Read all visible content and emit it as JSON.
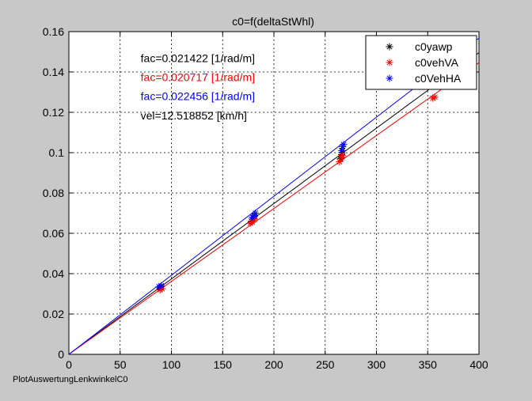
{
  "chart_data": {
    "type": "scatter",
    "title": "c0=f(deltaStWhl)",
    "xlabel": "",
    "ylabel": "",
    "xlim": [
      0,
      400
    ],
    "ylim": [
      0,
      0.16
    ],
    "xticks": [
      "0",
      "50",
      "100",
      "150",
      "200",
      "250",
      "300",
      "350",
      "400"
    ],
    "yticks": [
      "0",
      "0.02",
      "0.04",
      "0.06",
      "0.08",
      "0.1",
      "0.12",
      "0.14",
      "0.16"
    ],
    "grid": true,
    "legend_position": "top-right",
    "series": [
      {
        "name": "c0yawp",
        "color": "#000000",
        "marker": "asterisk",
        "points": [
          [
            89,
            0.033
          ],
          [
            90,
            0.0335
          ],
          [
            178,
            0.066
          ],
          [
            180,
            0.0675
          ],
          [
            181,
            0.0685
          ],
          [
            265,
            0.097
          ],
          [
            266,
            0.099
          ],
          [
            267,
            0.101
          ]
        ],
        "fit_slope": 0.000373878
      },
      {
        "name": "c0vehVA",
        "color": "#ff0000",
        "marker": "asterisk",
        "points": [
          [
            89,
            0.032
          ],
          [
            91,
            0.0325
          ],
          [
            177,
            0.065
          ],
          [
            179,
            0.0655
          ],
          [
            181,
            0.067
          ],
          [
            264,
            0.0955
          ],
          [
            266,
            0.0975
          ],
          [
            267,
            0.0985
          ],
          [
            355,
            0.127
          ],
          [
            357,
            0.1275
          ]
        ],
        "fit_slope": 0.000361582
      },
      {
        "name": "c0VehHA",
        "color": "#0000ff",
        "marker": "asterisk",
        "points": [
          [
            88,
            0.0335
          ],
          [
            90,
            0.034
          ],
          [
            179,
            0.068
          ],
          [
            181,
            0.069
          ],
          [
            182,
            0.07
          ],
          [
            266,
            0.101
          ],
          [
            267,
            0.103
          ],
          [
            268,
            0.104
          ]
        ],
        "fit_slope": 0.00039193
      }
    ],
    "annotations": [
      {
        "text": "fac=0.021422 [1/rad/m]",
        "color": "#000000",
        "x": 70,
        "y": 0.145
      },
      {
        "text": "fac=0.020717 [1/rad/m]",
        "color": "#ff0000",
        "x": 70,
        "y": 0.1355
      },
      {
        "text": "fac=0.022456 [1/rad/m]",
        "color": "#0000ff",
        "x": 70,
        "y": 0.126
      },
      {
        "text": "vel=12.518852 [km/h]",
        "color": "#000000",
        "x": 70,
        "y": 0.1165
      }
    ]
  },
  "footer_label": "PlotAuswertungLenkwinkelC0"
}
